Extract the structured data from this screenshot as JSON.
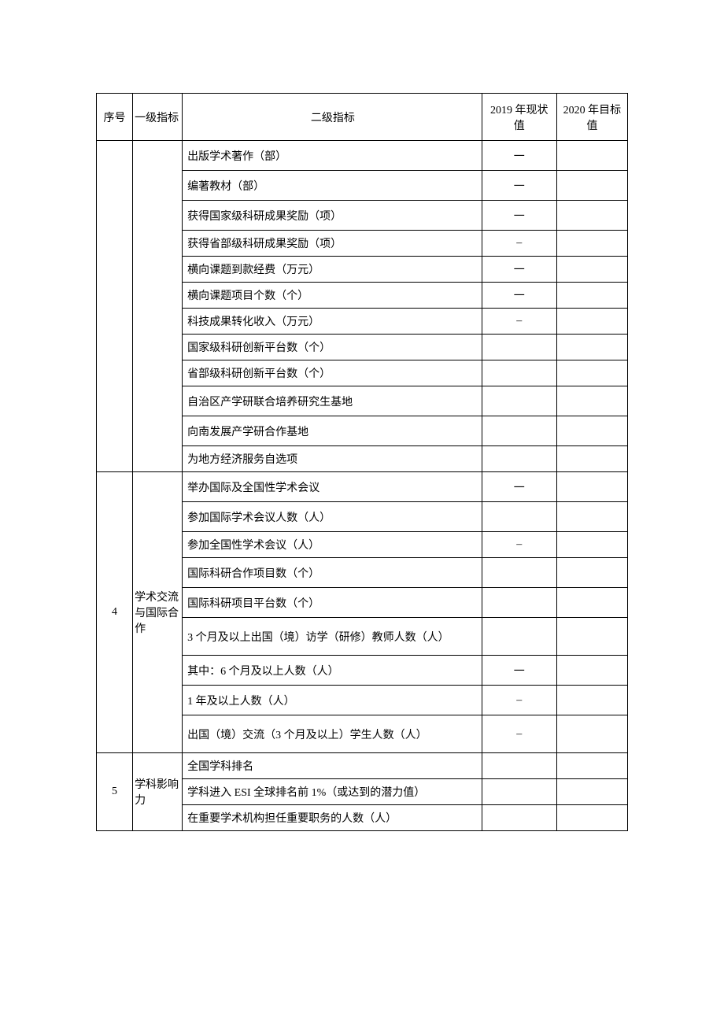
{
  "headers": {
    "seq": "序号",
    "level1": "一级指标",
    "level2": "二级指标",
    "y2019": "2019 年现状值",
    "y2020": "2020 年目标值"
  },
  "groups": [
    {
      "seq": "",
      "category": "",
      "rows": [
        {
          "indicator": "出版学术著作（部）",
          "v2019": "一",
          "v2020": "",
          "h": "med"
        },
        {
          "indicator": "编著教材（部）",
          "v2019": "一",
          "v2020": "",
          "h": "med"
        },
        {
          "indicator": "获得国家级科研成果奖励（项）",
          "v2019": "一",
          "v2020": "",
          "h": "med"
        },
        {
          "indicator": "获得省部级科研成果奖励（项）",
          "v2019": "–",
          "v2020": "",
          "h": "short"
        },
        {
          "indicator": "横向课题到款经费（万元）",
          "v2019": "一",
          "v2020": "",
          "h": "short"
        },
        {
          "indicator": "横向课题项目个数（个）",
          "v2019": "一",
          "v2020": "",
          "h": "short"
        },
        {
          "indicator": "科技成果转化收入（万元）",
          "v2019": "–",
          "v2020": "",
          "h": "short"
        },
        {
          "indicator": "国家级科研创新平台数（个）",
          "v2019": "",
          "v2020": "",
          "h": "short"
        },
        {
          "indicator": "省部级科研创新平台数（个）",
          "v2019": "",
          "v2020": "",
          "h": "short"
        },
        {
          "indicator": "自治区产学研联合培养研究生基地",
          "v2019": "",
          "v2020": "",
          "h": "med"
        },
        {
          "indicator": "向南发展产学研合作基地",
          "v2019": "",
          "v2020": "",
          "h": "med"
        },
        {
          "indicator": "为地方经济服务自选项",
          "v2019": "",
          "v2020": "",
          "h": "short"
        }
      ]
    },
    {
      "seq": "4",
      "category": "学术交流与国际合作",
      "rows": [
        {
          "indicator": "举办国际及全国性学术会议",
          "v2019": "一",
          "v2020": "",
          "h": "med"
        },
        {
          "indicator": "参加国际学术会议人数（人）",
          "v2019": "",
          "v2020": "",
          "h": "med"
        },
        {
          "indicator": "参加全国性学术会议（人）",
          "v2019": "–",
          "v2020": "",
          "h": "short"
        },
        {
          "indicator": "国际科研合作项目数（个）",
          "v2019": "",
          "v2020": "",
          "h": "med"
        },
        {
          "indicator": "国际科研项目平台数（个）",
          "v2019": "",
          "v2020": "",
          "h": "med"
        },
        {
          "indicator": "3 个月及以上出国（境）访学（研修）教师人数（人）",
          "v2019": "",
          "v2020": "",
          "h": "tall"
        },
        {
          "indicator": "其中：6 个月及以上人数（人）",
          "v2019": "一",
          "v2020": "",
          "h": "med"
        },
        {
          "indicator": "1 年及以上人数（人）",
          "v2019": "–",
          "v2020": "",
          "h": "med"
        },
        {
          "indicator": "出国（境）交流（3 个月及以上）学生人数（人）",
          "v2019": "–",
          "v2020": "",
          "h": "tall"
        }
      ]
    },
    {
      "seq": "5",
      "category": "学科影响力",
      "rows": [
        {
          "indicator": "全国学科排名",
          "v2019": "",
          "v2020": "",
          "h": "short"
        },
        {
          "indicator": "学科进入 ESI 全球排名前 1%（或达到的潜力值）",
          "v2019": "",
          "v2020": "",
          "h": "short"
        },
        {
          "indicator": "在重要学术机构担任重要职务的人数（人）",
          "v2019": "",
          "v2020": "",
          "h": "short"
        }
      ]
    }
  ]
}
